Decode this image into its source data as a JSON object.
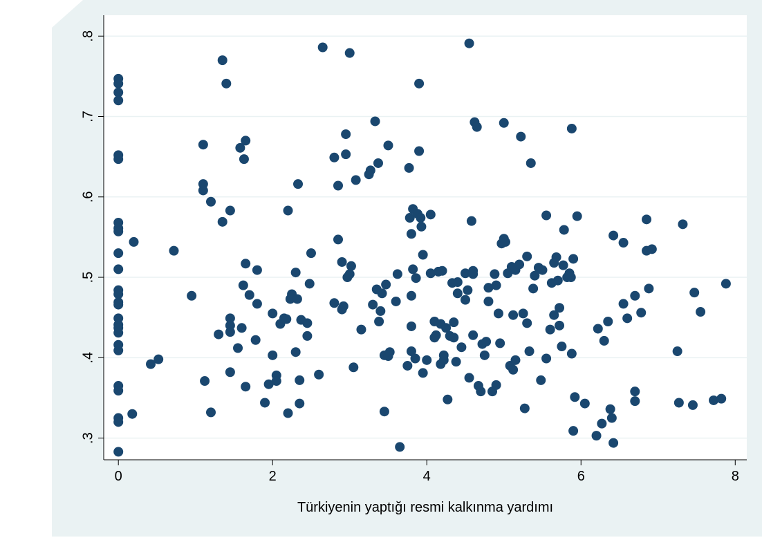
{
  "chart_data": {
    "type": "scatter",
    "x_label": "Türkiyenin yaptığı resmi kalkınma yardımı",
    "color": "#1a476f",
    "xlim": [
      -0.19,
      8.15
    ],
    "ylim": [
      0.273,
      0.826
    ],
    "xticks": [
      0,
      2,
      4,
      6,
      8
    ],
    "yticks": [
      {
        "value": 0.3,
        "label": ".3"
      },
      {
        "value": 0.4,
        "label": ".4"
      },
      {
        "value": 0.5,
        "label": ".5"
      },
      {
        "value": 0.6,
        "label": ".6"
      },
      {
        "value": 0.7,
        "label": ".7"
      },
      {
        "value": 0.8,
        "label": ".8"
      }
    ],
    "grid": true,
    "x": [
      0,
      0,
      0,
      0,
      0,
      0,
      0,
      0,
      0,
      0,
      0,
      0,
      0,
      0,
      0,
      0,
      0,
      0,
      0,
      0,
      0,
      0,
      0,
      0,
      0,
      0,
      0.2,
      0.18,
      0.42,
      0.52,
      0.72,
      0.95,
      1.1,
      1.1,
      1.1,
      1.12,
      1.2,
      1.2,
      1.3,
      1.35,
      1.35,
      1.4,
      1.45,
      1.45,
      1.45,
      1.45,
      1.45,
      1.55,
      1.58,
      1.6,
      1.62,
      1.63,
      1.65,
      1.65,
      1.65,
      1.7,
      1.78,
      1.8,
      1.8,
      1.9,
      1.95,
      2.0,
      2.0,
      2.05,
      2.05,
      2.1,
      2.15,
      2.18,
      2.2,
      2.2,
      2.23,
      2.25,
      2.3,
      2.3,
      2.32,
      2.33,
      2.35,
      2.35,
      2.37,
      2.45,
      2.45,
      2.48,
      2.5,
      2.6,
      2.65,
      2.8,
      2.8,
      2.85,
      2.85,
      2.9,
      2.9,
      2.92,
      2.95,
      2.95,
      2.97,
      3.0,
      3.0,
      3.02,
      3.05,
      3.08,
      3.15,
      3.25,
      3.27,
      3.3,
      3.33,
      3.35,
      3.37,
      3.38,
      3.4,
      3.42,
      3.45,
      3.45,
      3.47,
      3.5,
      3.5,
      3.52,
      3.6,
      3.62,
      3.65,
      3.75,
      3.77,
      3.78,
      3.8,
      3.8,
      3.8,
      3.8,
      3.82,
      3.82,
      3.85,
      3.86,
      3.88,
      3.9,
      3.9,
      3.92,
      3.93,
      3.95,
      3.95,
      4.0,
      4.05,
      4.05,
      4.1,
      4.1,
      4.12,
      4.15,
      4.18,
      4.18,
      4.2,
      4.22,
      4.22,
      4.25,
      4.27,
      4.3,
      4.33,
      4.35,
      4.35,
      4.38,
      4.4,
      4.4,
      4.45,
      4.5,
      4.5,
      4.53,
      4.55,
      4.55,
      4.58,
      4.6,
      4.6,
      4.6,
      4.62,
      4.65,
      4.67,
      4.7,
      4.72,
      4.75,
      4.77,
      4.8,
      4.8,
      4.85,
      4.88,
      4.9,
      4.9,
      4.93,
      4.95,
      4.97,
      5.0,
      5.0,
      5.02,
      5.05,
      5.08,
      5.1,
      5.12,
      5.12,
      5.15,
      5.15,
      5.2,
      5.22,
      5.25,
      5.27,
      5.3,
      5.3,
      5.33,
      5.35,
      5.38,
      5.4,
      5.45,
      5.48,
      5.5,
      5.55,
      5.55,
      5.6,
      5.62,
      5.65,
      5.65,
      5.68,
      5.7,
      5.72,
      5.72,
      5.75,
      5.77,
      5.78,
      5.82,
      5.85,
      5.87,
      5.88,
      5.88,
      5.9,
      5.9,
      5.92,
      5.95,
      6.05,
      6.2,
      6.22,
      6.27,
      6.3,
      6.35,
      6.38,
      6.4,
      6.42,
      6.42,
      6.55,
      6.55,
      6.6,
      6.7,
      6.7,
      6.7,
      6.78,
      6.85,
      6.85,
      6.88,
      6.92,
      7.25,
      7.27,
      7.32,
      7.45,
      7.47,
      7.55,
      7.72,
      7.82,
      7.88
    ],
    "values": [
      0.747,
      0.741,
      0.73,
      0.72,
      0.652,
      0.647,
      0.568,
      0.561,
      0.557,
      0.53,
      0.51,
      0.484,
      0.479,
      0.469,
      0.466,
      0.449,
      0.441,
      0.437,
      0.431,
      0.416,
      0.409,
      0.365,
      0.359,
      0.325,
      0.32,
      0.283,
      0.544,
      0.33,
      0.392,
      0.398,
      0.533,
      0.477,
      0.665,
      0.616,
      0.608,
      0.371,
      0.594,
      0.332,
      0.429,
      0.77,
      0.569,
      0.741,
      0.583,
      0.449,
      0.44,
      0.432,
      0.382,
      0.412,
      0.661,
      0.437,
      0.49,
      0.647,
      0.67,
      0.517,
      0.364,
      0.478,
      0.422,
      0.509,
      0.467,
      0.344,
      0.367,
      0.403,
      0.455,
      0.378,
      0.371,
      0.442,
      0.449,
      0.448,
      0.583,
      0.331,
      0.473,
      0.479,
      0.506,
      0.407,
      0.473,
      0.616,
      0.343,
      0.372,
      0.447,
      0.443,
      0.427,
      0.492,
      0.53,
      0.379,
      0.786,
      0.649,
      0.468,
      0.547,
      0.614,
      0.519,
      0.46,
      0.464,
      0.653,
      0.678,
      0.5,
      0.504,
      0.779,
      0.514,
      0.388,
      0.621,
      0.435,
      0.628,
      0.633,
      0.466,
      0.694,
      0.485,
      0.642,
      0.445,
      0.458,
      0.48,
      0.403,
      0.333,
      0.491,
      0.664,
      0.402,
      0.407,
      0.47,
      0.504,
      0.289,
      0.39,
      0.636,
      0.574,
      0.554,
      0.439,
      0.477,
      0.408,
      0.585,
      0.51,
      0.399,
      0.499,
      0.579,
      0.741,
      0.657,
      0.574,
      0.563,
      0.528,
      0.381,
      0.397,
      0.578,
      0.505,
      0.445,
      0.425,
      0.428,
      0.507,
      0.442,
      0.392,
      0.508,
      0.403,
      0.397,
      0.437,
      0.348,
      0.427,
      0.493,
      0.444,
      0.425,
      0.395,
      0.494,
      0.48,
      0.413,
      0.472,
      0.505,
      0.484,
      0.791,
      0.375,
      0.57,
      0.508,
      0.504,
      0.428,
      0.693,
      0.687,
      0.365,
      0.358,
      0.417,
      0.403,
      0.42,
      0.47,
      0.487,
      0.358,
      0.504,
      0.49,
      0.366,
      0.455,
      0.418,
      0.542,
      0.548,
      0.692,
      0.544,
      0.505,
      0.39,
      0.513,
      0.453,
      0.385,
      0.397,
      0.509,
      0.516,
      0.675,
      0.455,
      0.337,
      0.526,
      0.443,
      0.408,
      0.642,
      0.486,
      0.502,
      0.512,
      0.372,
      0.509,
      0.577,
      0.399,
      0.435,
      0.493,
      0.518,
      0.453,
      0.525,
      0.496,
      0.44,
      0.462,
      0.414,
      0.515,
      0.559,
      0.5,
      0.505,
      0.5,
      0.685,
      0.405,
      0.523,
      0.309,
      0.351,
      0.576,
      0.343,
      0.303,
      0.436,
      0.318,
      0.421,
      0.445,
      0.336,
      0.325,
      0.294,
      0.552,
      0.543,
      0.467,
      0.449,
      0.477,
      0.358,
      0.346,
      0.456,
      0.533,
      0.572,
      0.486,
      0.535,
      0.408,
      0.344,
      0.566,
      0.341,
      0.481,
      0.457,
      0.347,
      0.349,
      0.492
    ]
  }
}
